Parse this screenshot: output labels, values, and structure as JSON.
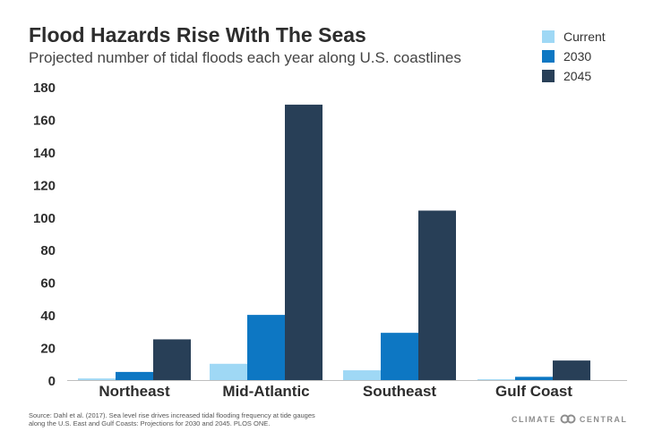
{
  "header": {
    "title": "Flood Hazards Rise With The Seas",
    "subtitle": "Projected number of tidal floods each year along U.S. coastlines"
  },
  "legend": [
    {
      "label": "Current",
      "color": "#9fd8f5"
    },
    {
      "label": "2030",
      "color": "#0d77c3"
    },
    {
      "label": "2045",
      "color": "#283f57"
    }
  ],
  "chart_data": {
    "type": "bar",
    "categories": [
      "Northeast",
      "Mid-Atlantic",
      "Southeast",
      "Gulf Coast"
    ],
    "series": [
      {
        "name": "Current",
        "values": [
          1,
          10,
          6,
          0.5
        ],
        "color": "#9fd8f5"
      },
      {
        "name": "2030",
        "values": [
          5,
          40,
          29,
          2
        ],
        "color": "#0d77c3"
      },
      {
        "name": "2045",
        "values": [
          25,
          169,
          104,
          12
        ],
        "color": "#283f57"
      }
    ],
    "title": "Flood Hazards Rise With The Seas",
    "subtitle": "Projected number of tidal floods each year along U.S. coastlines",
    "ylim": [
      0,
      180
    ],
    "yticks": [
      0,
      20,
      40,
      60,
      80,
      100,
      120,
      140,
      160,
      180
    ],
    "grid": false,
    "legend_position": "top-right"
  },
  "footer": {
    "source": "Source: Dahl et al. (2017). Sea level rise drives increased tidal flooding frequency at tide gauges along the U.S. East and Gulf Coasts: Projections for 2030 and 2045. PLOS ONE.",
    "logo_left": "CLIMATE",
    "logo_right": "CENTRAL"
  }
}
